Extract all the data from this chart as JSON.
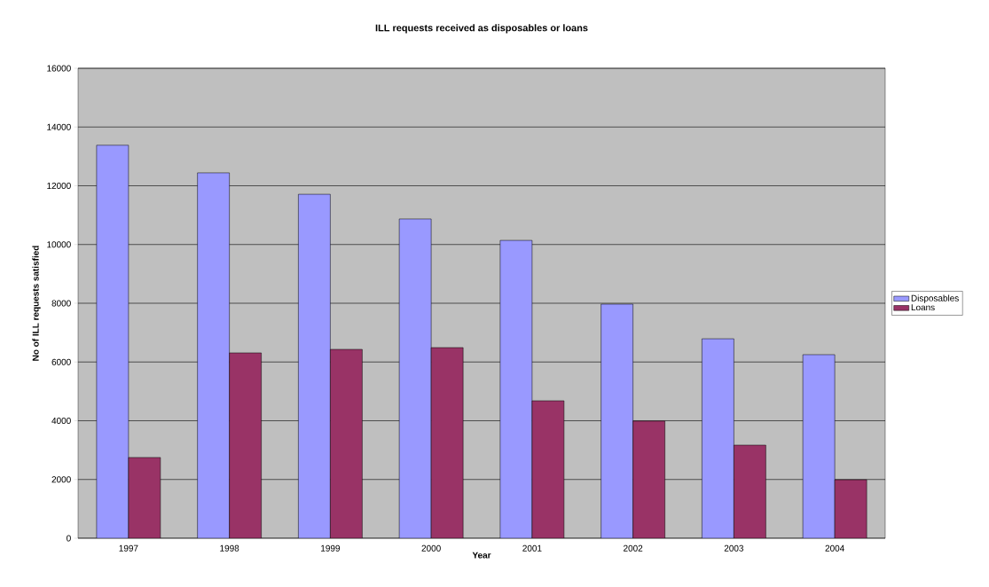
{
  "chart_data": {
    "type": "bar",
    "title": "ILL requests received as disposables or loans",
    "xlabel": "Year",
    "ylabel": "No of ILL requests satisfied",
    "categories": [
      "1997",
      "1998",
      "1999",
      "2000",
      "2001",
      "2002",
      "2003",
      "2004"
    ],
    "series": [
      {
        "name": "Disposables",
        "color": "#9999ff",
        "values": [
          13380,
          12440,
          11710,
          10870,
          10140,
          7970,
          6790,
          6250
        ]
      },
      {
        "name": "Loans",
        "color": "#993366",
        "values": [
          2750,
          6310,
          6430,
          6490,
          4680,
          3990,
          3170,
          1990
        ]
      }
    ],
    "ylim": [
      0,
      16000
    ],
    "yticks": [
      0,
      2000,
      4000,
      6000,
      8000,
      10000,
      12000,
      14000,
      16000
    ],
    "grid": "y",
    "legend": "right"
  }
}
